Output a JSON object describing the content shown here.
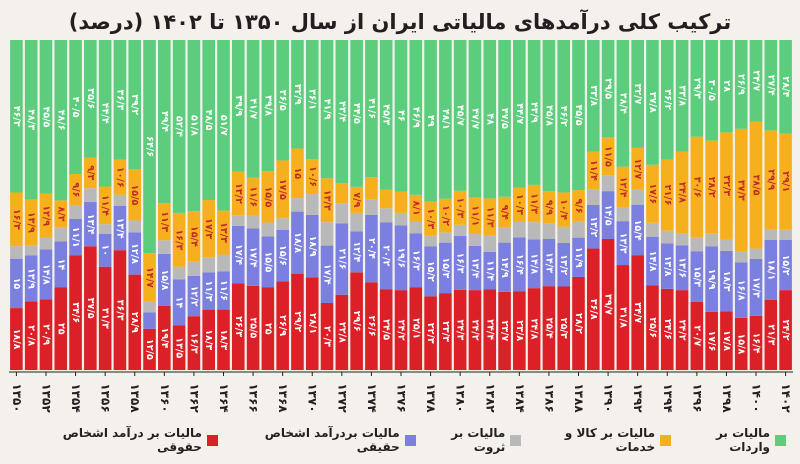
{
  "chart_data": {
    "type": "bar",
    "stacked": true,
    "orientation": "vertical",
    "title": "ترکیب کلی درآمدهای مالیاتی ایران از سال ۱۳۵۰ تا ۱۴۰۲ (درصد)",
    "xlabel": "",
    "ylabel": "",
    "ylim": [
      0,
      100
    ],
    "tick_labels": [
      "۱۳۵۰",
      "۱۳۵۲",
      "۱۳۵۴",
      "۱۳۵۶",
      "۱۳۵۸",
      "۱۳۶۰",
      "۱۳۶۲",
      "۱۳۶۴",
      "۱۳۶۶",
      "۱۳۶۸",
      "۱۳۷۰",
      "۱۳۷۲",
      "۱۳۷۴",
      "۱۳۷۶",
      "۱۳۷۸",
      "۱۳۸۰",
      "۱۳۸۲",
      "۱۳۸۴",
      "۱۳۸۶",
      "۱۳۸۸",
      "۱۳۹۰",
      "۱۳۹۲",
      "۱۳۹۴",
      "۱۳۹۶",
      "۱۳۹۸",
      "۱۴۰۰",
      "۱۴۰۲"
    ],
    "categories": [
      "1350",
      "1351",
      "1352",
      "1353",
      "1354",
      "1355",
      "1356",
      "1357",
      "1358",
      "1359",
      "1360",
      "1361",
      "1362",
      "1363",
      "1364",
      "1365",
      "1366",
      "1367",
      "1368",
      "1369",
      "1370",
      "1371",
      "1372",
      "1373",
      "1374",
      "1375",
      "1376",
      "1377",
      "1378",
      "1379",
      "1380",
      "1381",
      "1382",
      "1383",
      "1384",
      "1385",
      "1386",
      "1387",
      "1388",
      "1389",
      "1390",
      "1391",
      "1392",
      "1393",
      "1394",
      "1395",
      "1396",
      "1397",
      "1398",
      "1399",
      "1400",
      "1401",
      "1402"
    ],
    "legend_position": "bottom",
    "series": [
      {
        "name": "مالیات بر درآمد اشخاص حقوقی",
        "color": "#dc2027",
        "show_labels": true,
        "values": [
          18.8,
          20.8,
          20.9,
          25,
          34.6,
          37.5,
          31.3,
          36.3,
          28.9,
          12.5,
          19.4,
          13.5,
          16.3,
          18.3,
          18.3,
          26.3,
          25.5,
          25,
          26.9,
          29.2,
          28.1,
          20.3,
          22.8,
          29.6,
          26.6,
          24.5,
          24.2,
          25.1,
          22.3,
          23.3,
          24.3,
          24.2,
          24.4,
          23.7,
          23.8,
          24.8,
          25.4,
          25.3,
          28.2,
          36.8,
          39.7,
          31.8,
          34.7,
          25.6,
          24.6,
          24.2,
          20.7,
          17.6,
          17.8,
          15.8,
          16.4,
          21.3,
          24.2
        ]
      },
      {
        "name": "مالیات بردرآمد اشخاص حقیقی",
        "color": "#7b7fe0",
        "show_labels": true,
        "values": [
          15,
          13.9,
          14.8,
          14,
          11.1,
          13.4,
          10,
          13.4,
          12.8,
          5,
          15.8,
          14,
          12.2,
          11.3,
          11.6,
          17.4,
          17.4,
          15.5,
          15.6,
          18.8,
          18.9,
          17.4,
          21.6,
          12.4,
          20.4,
          20.2,
          19.6,
          16.3,
          15.2,
          15.3,
          16.3,
          13.4,
          11.4,
          14.9,
          16.4,
          14.8,
          14.3,
          13.2,
          11.9,
          13.2,
          14.5,
          13.3,
          15.4,
          14.8,
          13.8,
          13.6,
          15.3,
          19.9,
          18.3,
          16.8,
          17.3,
          18.1,
          15.2
        ]
      },
      {
        "name": "مالیات بر ثروت",
        "color": "#b9b9b9",
        "show_labels": false,
        "values": [
          3.8,
          3.1,
          3.5,
          4.1,
          3.9,
          4.2,
          2.9,
          3.4,
          3.6,
          3.2,
          4.1,
          3.8,
          4.3,
          4.6,
          5.1,
          3.2,
          3.8,
          4.2,
          3.5,
          4.1,
          6.3,
          7.1,
          6.1,
          5.6,
          4.8,
          4.3,
          3.8,
          3.6,
          3.2,
          3.1,
          3.4,
          3.6,
          4.9,
          4.5,
          4.8,
          5.2,
          4.6,
          4.9,
          4.8,
          4.8,
          4.8,
          4.1,
          4.5,
          4.2,
          3.8,
          3.6,
          4.1,
          3.8,
          3.6,
          3.2,
          3.1,
          3.3,
          3.1
        ]
      },
      {
        "name": "مالیات بر کالا و خدمات",
        "color": "#f7b01d",
        "show_labels": true,
        "values": [
          16.3,
          13.9,
          12.9,
          8.3,
          9.6,
          9.3,
          11.4,
          10.6,
          15.5,
          14.7,
          11.3,
          16.3,
          15.4,
          17.3,
          13.3,
          13.2,
          11.6,
          15.5,
          17.5,
          15,
          10.6,
          13.3,
          6.1,
          7.9,
          6.6,
          5.7,
          6.4,
          8.1,
          10.3,
          10.2,
          10.3,
          11.1,
          11.3,
          9.4,
          10.3,
          11.3,
          9.9,
          10.4,
          9.6,
          11.4,
          11.5,
          12.4,
          12.7,
          17.6,
          21.6,
          24.8,
          30.6,
          28.2,
          32.3,
          37.3,
          38.5,
          29.9,
          29.1
        ]
      },
      {
        "name": "مالیات بر واردات",
        "color": "#5ccd7d",
        "show_labels": true,
        "values": [
          46.3,
          48.3,
          45.5,
          48.6,
          40.5,
          35.6,
          44.4,
          36.3,
          39.2,
          64.6,
          49.4,
          52.4,
          51.8,
          48.5,
          51.7,
          39.9,
          41.7,
          39.8,
          36.5,
          32.9,
          36.1,
          41.9,
          43.4,
          44.5,
          41.6,
          45.3,
          46,
          46.9,
          49,
          48.1,
          45.7,
          47.7,
          48,
          47.5,
          44.7,
          43.9,
          45.8,
          46.2,
          45.5,
          33.8,
          29.5,
          38.4,
          32.7,
          37.8,
          36.2,
          33.8,
          29.3,
          30.5,
          28,
          26.9,
          24.7,
          27.4,
          28.4
        ]
      }
    ]
  },
  "legend_items": [
    {
      "label": "مالیات بر درآمد اشخاص حقوقی",
      "color": "#dc2027"
    },
    {
      "label": "مالیات بردرآمد اشخاص حقیقی",
      "color": "#7b7fe0"
    },
    {
      "label": "مالیات بر ثروت",
      "color": "#b9b9b9"
    },
    {
      "label": "مالیات بر کالا و خدمات",
      "color": "#f7b01d"
    },
    {
      "label": "مالیات بر واردات",
      "color": "#5ccd7d"
    }
  ]
}
